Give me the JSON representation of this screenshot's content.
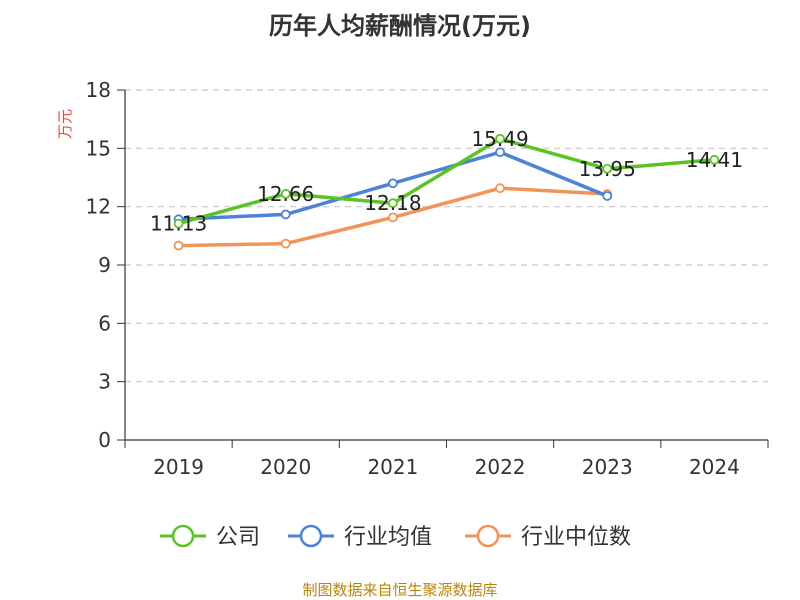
{
  "chart_data": {
    "type": "line",
    "title": "历年人均薪酬情况(万元)",
    "ylabel": "万元",
    "xlabel": "",
    "categories": [
      "2019",
      "2020",
      "2021",
      "2022",
      "2023",
      "2024"
    ],
    "ylim": [
      0,
      18
    ],
    "yticks": [
      0,
      3,
      6,
      9,
      12,
      15,
      18
    ],
    "grid": true,
    "legend_position": "bottom",
    "series": [
      {
        "name": "公司",
        "color": "#5ac425",
        "values": [
          11.13,
          12.66,
          12.18,
          15.49,
          13.95,
          14.41
        ],
        "labels": [
          "11.13",
          "12.66",
          "12.18",
          "15.49",
          "13.95",
          "14.41"
        ]
      },
      {
        "name": "行业均值",
        "color": "#4e82d6",
        "values": [
          11.35,
          11.6,
          13.2,
          14.8,
          12.55,
          null
        ]
      },
      {
        "name": "行业中位数",
        "color": "#f29458",
        "values": [
          10.0,
          10.1,
          11.45,
          12.95,
          12.65,
          null
        ]
      }
    ],
    "source": "制图数据来自恒生聚源数据库"
  }
}
